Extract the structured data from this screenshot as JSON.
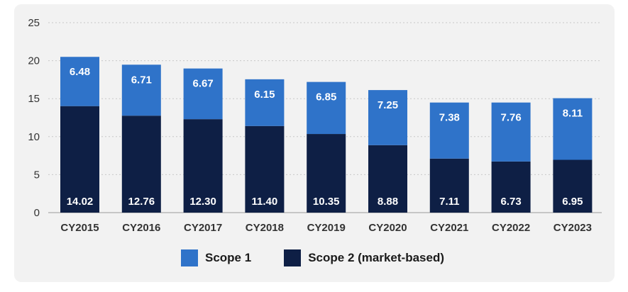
{
  "chart_data": {
    "type": "bar",
    "stacked": true,
    "categories": [
      "CY2015",
      "CY2016",
      "CY2017",
      "CY2018",
      "CY2019",
      "CY2020",
      "CY2021",
      "CY2022",
      "CY2023"
    ],
    "series": [
      {
        "name": "Scope 2 (market-based)",
        "color": "#0e1f45",
        "values": [
          14.02,
          12.76,
          12.3,
          11.4,
          10.35,
          8.88,
          7.11,
          6.73,
          6.95
        ],
        "labels": [
          "14.02",
          "12.76",
          "12.30",
          "11.40",
          "10.35",
          "8.88",
          "7.11",
          "6.73",
          "6.95"
        ]
      },
      {
        "name": "Scope 1",
        "color": "#2f73c9",
        "values": [
          6.48,
          6.71,
          6.67,
          6.15,
          6.85,
          7.25,
          7.38,
          7.76,
          8.11
        ],
        "labels": [
          "6.48",
          "6.71",
          "6.67",
          "6.15",
          "6.85",
          "7.25",
          "7.38",
          "7.76",
          "8.11"
        ]
      }
    ],
    "ylim": [
      0,
      25
    ],
    "yticks": [
      0,
      5,
      10,
      15,
      20,
      25
    ],
    "ytick_labels": [
      "0",
      "5",
      "10",
      "15",
      "20",
      "25"
    ],
    "grid": true,
    "legend": "bottom-center"
  },
  "legend": {
    "scope1_label": "Scope 1",
    "scope2_label": "Scope 2 (market-based)",
    "scope1_color": "#2f73c9",
    "scope2_color": "#0e1f45"
  }
}
